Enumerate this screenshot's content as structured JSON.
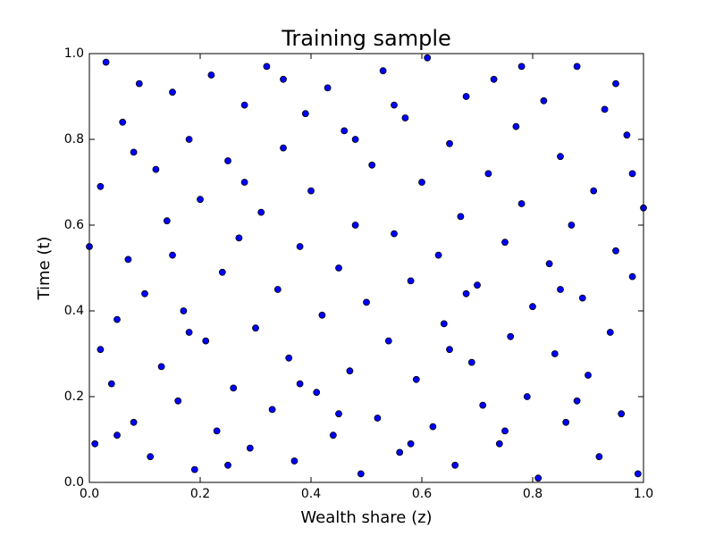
{
  "chart_data": {
    "type": "scatter",
    "title": "Training sample",
    "x_label": "Wealth share (z)",
    "y_label": "Time (t)",
    "color": "#0000ff",
    "edge_color": "#000000",
    "xlim": [
      0,
      1
    ],
    "ylim": [
      0,
      1
    ],
    "xticks": [
      {
        "value": 0,
        "label": "0.0"
      },
      0.2,
      0.4,
      0.6,
      0.8,
      {
        "value": 1,
        "label": "1.0"
      }
    ],
    "yticks": [
      {
        "value": 0,
        "label": "0.0"
      },
      0.2,
      0.4,
      0.6,
      0.8,
      {
        "value": 1,
        "label": "1.0"
      }
    ],
    "x": [
      0.0,
      0.01,
      0.02,
      0.02,
      0.03,
      0.04,
      0.05,
      0.06,
      0.07,
      0.08,
      0.09,
      0.1,
      0.11,
      0.12,
      0.13,
      0.14,
      0.15,
      0.16,
      0.17,
      0.18,
      0.19,
      0.2,
      0.21,
      0.22,
      0.23,
      0.24,
      0.25,
      0.26,
      0.27,
      0.28,
      0.29,
      0.3,
      0.31,
      0.32,
      0.33,
      0.34,
      0.35,
      0.36,
      0.37,
      0.38,
      0.39,
      0.4,
      0.41,
      0.42,
      0.43,
      0.44,
      0.45,
      0.46,
      0.47,
      0.48,
      0.49,
      0.5,
      0.51,
      0.52,
      0.53,
      0.54,
      0.55,
      0.56,
      0.57,
      0.58,
      0.59,
      0.6,
      0.61,
      0.62,
      0.63,
      0.64,
      0.65,
      0.66,
      0.67,
      0.68,
      0.69,
      0.7,
      0.71,
      0.72,
      0.73,
      0.74,
      0.75,
      0.76,
      0.77,
      0.78,
      0.79,
      0.8,
      0.81,
      0.82,
      0.83,
      0.84,
      0.85,
      0.86,
      0.87,
      0.88,
      0.89,
      0.9,
      0.91,
      0.92,
      0.93,
      0.94,
      0.95,
      0.96,
      0.97,
      0.98,
      0.99,
      1.0,
      0.05,
      0.15,
      0.25,
      0.35,
      0.45,
      0.55,
      0.65,
      0.75,
      0.85,
      0.95,
      0.08,
      0.18,
      0.28,
      0.38,
      0.48,
      0.58,
      0.68,
      0.78,
      0.88,
      0.98
    ],
    "values": [
      0.55,
      0.09,
      0.69,
      0.31,
      0.98,
      0.23,
      0.38,
      0.84,
      0.52,
      0.14,
      0.93,
      0.44,
      0.06,
      0.73,
      0.27,
      0.61,
      0.91,
      0.19,
      0.4,
      0.8,
      0.03,
      0.66,
      0.33,
      0.95,
      0.12,
      0.49,
      0.75,
      0.22,
      0.57,
      0.88,
      0.08,
      0.36,
      0.63,
      0.97,
      0.17,
      0.45,
      0.78,
      0.29,
      0.05,
      0.55,
      0.86,
      0.68,
      0.21,
      0.39,
      0.92,
      0.11,
      0.5,
      0.82,
      0.26,
      0.6,
      0.02,
      0.42,
      0.74,
      0.15,
      0.96,
      0.33,
      0.58,
      0.07,
      0.85,
      0.47,
      0.24,
      0.7,
      0.99,
      0.13,
      0.53,
      0.37,
      0.79,
      0.04,
      0.62,
      0.9,
      0.28,
      0.46,
      0.18,
      0.72,
      0.94,
      0.09,
      0.56,
      0.34,
      0.83,
      0.65,
      0.2,
      0.41,
      0.01,
      0.89,
      0.51,
      0.3,
      0.76,
      0.14,
      0.6,
      0.97,
      0.43,
      0.25,
      0.68,
      0.06,
      0.87,
      0.35,
      0.54,
      0.16,
      0.81,
      0.48,
      0.02,
      0.64,
      0.11,
      0.53,
      0.04,
      0.94,
      0.16,
      0.88,
      0.31,
      0.12,
      0.45,
      0.93,
      0.77,
      0.35,
      0.7,
      0.23,
      0.8,
      0.09,
      0.44,
      0.97,
      0.19,
      0.72
    ]
  }
}
